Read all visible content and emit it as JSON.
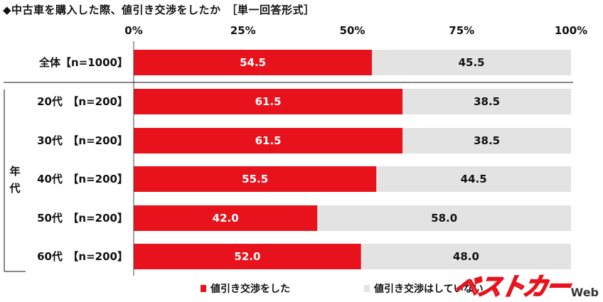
{
  "title": "◆中古車を購入した際、値引き交渉をしたか　［単一回答形式］",
  "colors": {
    "did": "#e8121c",
    "not": "#e3e3e3"
  },
  "chart_data": {
    "type": "bar",
    "orientation": "horizontal",
    "stacked": true,
    "xlim": [
      0,
      100
    ],
    "ticks": [
      "0%",
      "25%",
      "50%",
      "75%",
      "100%"
    ],
    "tick_values": [
      0,
      25,
      50,
      75,
      100
    ],
    "group_label": [
      "年",
      "代"
    ],
    "categories": [
      "全体【n=1000】",
      "20代　【n=200】",
      "30代　【n=200】",
      "40代　【n=200】",
      "50代　【n=200】",
      "60代　【n=200】"
    ],
    "series": [
      {
        "name": "値引き交渉をした",
        "values": [
          "54.5",
          "61.5",
          "61.5",
          "55.5",
          "42.0",
          "52.0"
        ]
      },
      {
        "name": "値引き交渉はしていない",
        "values": [
          "45.5",
          "38.5",
          "38.5",
          "44.5",
          "58.0",
          "48.0"
        ]
      }
    ],
    "legend": "bottom"
  },
  "logo": {
    "main": "ベストカー",
    "sub": "Web"
  }
}
